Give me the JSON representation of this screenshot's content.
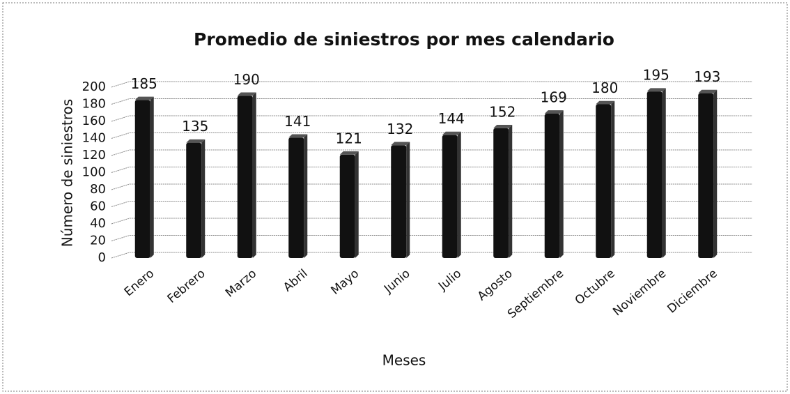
{
  "chart_data": {
    "type": "bar",
    "title": "Promedio de siniestros por mes calendario",
    "x_label": "Meses",
    "y_label": "Número de siniestros",
    "categories": [
      "Enero",
      "Febrero",
      "Marzo",
      "Abril",
      "Mayo",
      "Junio",
      "Julio",
      "Agosto",
      "Septiembre",
      "Octubre",
      "Noviembre",
      "Diciembre"
    ],
    "values": [
      185,
      135,
      190,
      141,
      121,
      132,
      144,
      152,
      169,
      180,
      195,
      193
    ],
    "color": "#111111",
    "ylim": [
      0,
      200
    ],
    "yticks": [
      0,
      20,
      40,
      60,
      80,
      100,
      120,
      140,
      160,
      180,
      200
    ],
    "grid": true
  }
}
